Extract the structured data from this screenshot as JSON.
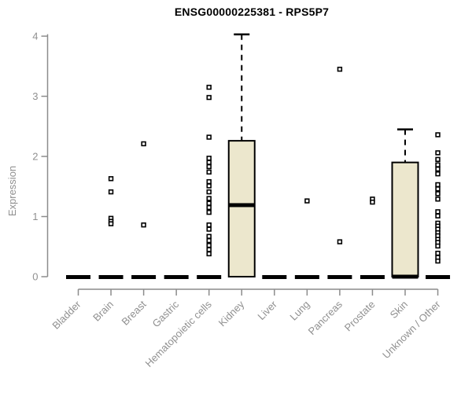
{
  "chart_data": {
    "type": "boxplot",
    "title": "ENSG00000225381 - RPS5P7",
    "ylabel": "Expression",
    "xlabel": "",
    "ylim": [
      0,
      4
    ],
    "yticks": [
      0,
      1,
      2,
      3,
      4
    ],
    "grid": false,
    "legend_position": "none",
    "categories": [
      "Bladder",
      "Brain",
      "Breast",
      "Gastric",
      "Hematopoietic cells",
      "Kidney",
      "Liver",
      "Lung",
      "Pancreas",
      "Prostate",
      "Skin",
      "Unknown / Other"
    ],
    "series": [
      {
        "name": "Bladder",
        "box": {
          "q1": 0,
          "median": 0,
          "q3": 0,
          "whisker_low": 0,
          "whisker_high": 0
        },
        "points": []
      },
      {
        "name": "Brain",
        "box": {
          "q1": 0,
          "median": 0,
          "q3": 0,
          "whisker_low": 0,
          "whisker_high": 0
        },
        "points": [
          1.63,
          1.41,
          0.97,
          0.92,
          0.88
        ]
      },
      {
        "name": "Breast",
        "box": {
          "q1": 0,
          "median": 0,
          "q3": 0,
          "whisker_low": 0,
          "whisker_high": 0
        },
        "points": [
          2.21,
          0.86
        ]
      },
      {
        "name": "Gastric",
        "box": {
          "q1": 0,
          "median": 0,
          "q3": 0,
          "whisker_low": 0,
          "whisker_high": 0
        },
        "points": []
      },
      {
        "name": "Hematopoietic cells",
        "box": {
          "q1": 0,
          "median": 0,
          "q3": 0,
          "whisker_low": 0,
          "whisker_high": 0
        },
        "points": [
          3.15,
          2.98,
          2.32,
          1.97,
          1.9,
          1.83,
          1.74,
          1.58,
          1.51,
          1.41,
          1.3,
          1.22,
          1.15,
          1.07,
          0.86,
          0.79,
          0.67,
          0.6,
          0.52,
          0.45,
          0.38
        ]
      },
      {
        "name": "Kidney",
        "box": {
          "q1": 0,
          "median": 1.19,
          "q3": 2.26,
          "whisker_low": 0,
          "whisker_high": 4.03
        },
        "points": []
      },
      {
        "name": "Liver",
        "box": {
          "q1": 0,
          "median": 0,
          "q3": 0,
          "whisker_low": 0,
          "whisker_high": 0
        },
        "points": []
      },
      {
        "name": "Lung",
        "box": {
          "q1": 0,
          "median": 0,
          "q3": 0,
          "whisker_low": 0,
          "whisker_high": 0
        },
        "points": [
          1.26
        ]
      },
      {
        "name": "Pancreas",
        "box": {
          "q1": 0,
          "median": 0,
          "q3": 0,
          "whisker_low": 0,
          "whisker_high": 0
        },
        "points": [
          3.45,
          0.58
        ]
      },
      {
        "name": "Prostate",
        "box": {
          "q1": 0,
          "median": 0,
          "q3": 0,
          "whisker_low": 0,
          "whisker_high": 0
        },
        "points": [
          1.29,
          1.24
        ]
      },
      {
        "name": "Skin",
        "box": {
          "q1": 0,
          "median": 0,
          "q3": 1.9,
          "whisker_low": 0,
          "whisker_high": 2.45
        },
        "points": []
      },
      {
        "name": "Unknown / Other",
        "box": {
          "q1": 0,
          "median": 0,
          "q3": 0,
          "whisker_low": 0,
          "whisker_high": 0
        },
        "points": [
          2.36,
          2.06,
          1.95,
          1.86,
          1.79,
          1.71,
          1.53,
          1.46,
          1.38,
          1.29,
          1.08,
          1.01,
          0.89,
          0.84,
          0.79,
          0.73,
          0.68,
          0.62,
          0.57,
          0.51,
          0.39,
          0.32,
          0.26
        ]
      }
    ],
    "colors": {
      "box_fill": "#ece7cd",
      "box_stroke": "#000000",
      "median": "#000000",
      "point_stroke": "#000000",
      "point_fill": "#ffffff",
      "axis": "#8c8c8c",
      "tick_label": "#909090",
      "title": "#000000",
      "background": "#ffffff"
    }
  }
}
